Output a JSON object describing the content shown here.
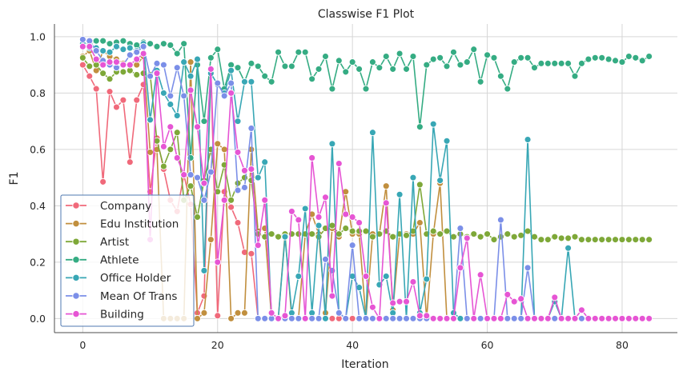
{
  "chart_data": {
    "type": "line",
    "title": "Classwise F1 Plot",
    "xlabel": "Iteration",
    "ylabel": "F1",
    "xlim": [
      -4.2,
      88.2
    ],
    "ylim": [
      -0.05,
      1.045
    ],
    "xticks": [
      0,
      20,
      40,
      60,
      80
    ],
    "yticks": [
      0.0,
      0.2,
      0.4,
      0.6,
      0.8,
      1.0
    ],
    "tick_labels_x": [
      "0",
      "20",
      "40",
      "60",
      "80"
    ],
    "tick_labels_y": [
      "0.0",
      "0.2",
      "0.4",
      "0.6",
      "0.8",
      "1.0"
    ],
    "grid": true,
    "legend_position": "lower-left",
    "x": [
      0,
      1,
      2,
      3,
      4,
      5,
      6,
      7,
      8,
      9,
      10,
      11,
      12,
      13,
      14,
      15,
      16,
      17,
      18,
      19,
      20,
      21,
      22,
      23,
      24,
      25,
      26,
      27,
      28,
      29,
      30,
      31,
      32,
      33,
      34,
      35,
      36,
      37,
      38,
      39,
      40,
      41,
      42,
      43,
      44,
      45,
      46,
      47,
      48,
      49,
      50,
      51,
      52,
      53,
      54,
      55,
      56,
      57,
      58,
      59,
      60,
      61,
      62,
      63,
      64,
      65,
      66,
      67,
      68,
      69,
      70,
      71,
      72,
      73,
      74,
      75,
      76,
      77,
      78,
      79,
      80,
      81,
      82,
      83,
      84
    ],
    "series": [
      {
        "name": "Company",
        "color": "#f0697a",
        "values": [
          0.9,
          0.86,
          0.815,
          0.485,
          0.805,
          0.75,
          0.775,
          0.555,
          0.775,
          0.83,
          0.45,
          0.64,
          0.53,
          0.42,
          0.38,
          0.51,
          0.405,
          0.02,
          0.08,
          0.88,
          0.01,
          0.45,
          0.395,
          0.34,
          0.235,
          0.23,
          0,
          0,
          0,
          0,
          0,
          0,
          0,
          0,
          0,
          0,
          0,
          0,
          0,
          0,
          0,
          0,
          0,
          0,
          0,
          0,
          0,
          0,
          0,
          0,
          0,
          0,
          0,
          0,
          0,
          0,
          0,
          0,
          0,
          0,
          0,
          0,
          0,
          0,
          0,
          0,
          0,
          0,
          0,
          0,
          0,
          0,
          0,
          0,
          0,
          0,
          0,
          0,
          0,
          0,
          0,
          0,
          0,
          0,
          0
        ]
      },
      {
        "name": "Edu Institution",
        "color": "#c18f3e",
        "values": [
          0.93,
          0.95,
          0.88,
          0.95,
          0.93,
          0.92,
          0.905,
          0.9,
          0.9,
          0.93,
          0.59,
          0.6,
          0,
          0,
          0,
          0,
          0.91,
          0,
          0.02,
          0.28,
          0.62,
          0.6,
          0,
          0.02,
          0.02,
          0.6,
          0.31,
          0.32,
          0,
          0,
          0.3,
          0,
          0,
          0.3,
          0.37,
          0.3,
          0.02,
          0.32,
          0.29,
          0.45,
          0.3,
          0.3,
          0,
          0.3,
          0.3,
          0.47,
          0.03,
          0.3,
          0.3,
          0.3,
          0.34,
          0,
          0.3,
          0.48,
          0,
          0,
          0,
          0,
          0,
          0,
          0,
          0,
          0,
          0,
          0,
          0,
          0,
          0,
          0,
          0,
          0,
          0,
          0,
          0,
          0,
          0,
          0,
          0,
          0,
          0,
          0,
          0,
          0,
          0,
          0
        ]
      },
      {
        "name": "Artist",
        "color": "#7ea838",
        "values": [
          0.925,
          0.895,
          0.9,
          0.87,
          0.85,
          0.875,
          0.875,
          0.88,
          0.865,
          0.87,
          0.865,
          0.63,
          0.54,
          0.6,
          0.66,
          0.42,
          0.47,
          0.36,
          0.49,
          0.6,
          0.45,
          0.545,
          0.42,
          0.48,
          0.5,
          0.49,
          0.3,
          0.29,
          0.3,
          0.29,
          0.3,
          0.3,
          0.3,
          0.3,
          0.3,
          0.29,
          0.32,
          0.33,
          0.3,
          0.32,
          0.31,
          0.31,
          0.31,
          0.29,
          0.3,
          0.31,
          0.29,
          0.3,
          0.295,
          0.31,
          0.475,
          0.3,
          0.31,
          0.3,
          0.31,
          0.29,
          0.3,
          0.29,
          0.3,
          0.29,
          0.3,
          0.28,
          0.29,
          0.3,
          0.29,
          0.295,
          0.31,
          0.29,
          0.28,
          0.28,
          0.29,
          0.285,
          0.285,
          0.29,
          0.28,
          0.28,
          0.28,
          0.28,
          0.28,
          0.28,
          0.28,
          0.28,
          0.28,
          0.28,
          0.28
        ]
      },
      {
        "name": "Athlete",
        "color": "#35ac83",
        "values": [
          0.985,
          0.975,
          0.985,
          0.985,
          0.975,
          0.98,
          0.985,
          0.975,
          0.97,
          0.98,
          0.975,
          0.965,
          0.975,
          0.97,
          0.94,
          0.975,
          0.57,
          0.9,
          0.7,
          0.925,
          0.955,
          0.815,
          0.9,
          0.89,
          0.84,
          0.905,
          0.895,
          0.86,
          0.84,
          0.945,
          0.895,
          0.895,
          0.945,
          0.945,
          0.85,
          0.885,
          0.93,
          0.815,
          0.915,
          0.875,
          0.91,
          0.885,
          0.815,
          0.91,
          0.89,
          0.93,
          0.885,
          0.94,
          0.885,
          0.93,
          0.68,
          0.9,
          0.92,
          0.925,
          0.895,
          0.945,
          0.9,
          0.91,
          0.955,
          0.84,
          0.935,
          0.925,
          0.86,
          0.815,
          0.91,
          0.925,
          0.925,
          0.89,
          0.905,
          0.905,
          0.905,
          0.905,
          0.905,
          0.86,
          0.905,
          0.92,
          0.925,
          0.925,
          0.92,
          0.915,
          0.91,
          0.93,
          0.925,
          0.915,
          0.93
        ]
      },
      {
        "name": "Office Holder",
        "color": "#38a7b5",
        "values": [
          0.975,
          0.96,
          0.96,
          0.95,
          0.945,
          0.965,
          0.955,
          0.96,
          0.95,
          0.975,
          0.705,
          0.88,
          0.8,
          0.76,
          0.72,
          0.91,
          0.86,
          0.92,
          0.17,
          0.87,
          0.83,
          0.8,
          0.88,
          0.7,
          0.84,
          0.84,
          0.5,
          0.555,
          0,
          0,
          0.29,
          0.02,
          0.15,
          0.39,
          0.02,
          0.33,
          0,
          0.62,
          0.02,
          0,
          0.15,
          0.11,
          0,
          0.66,
          0.12,
          0.15,
          0.02,
          0.44,
          0,
          0.5,
          0.02,
          0.14,
          0.69,
          0.49,
          0.63,
          0.02,
          0,
          0,
          0,
          0,
          0,
          0,
          0,
          0,
          0,
          0,
          0.635,
          0,
          0,
          0,
          0.06,
          0,
          0.25,
          0,
          0,
          0,
          0,
          0,
          0,
          0,
          0,
          0,
          0,
          0,
          0
        ]
      },
      {
        "name": "Mean Of Trans",
        "color": "#7b8fe8",
        "values": [
          0.99,
          0.985,
          0.95,
          0.915,
          0.9,
          0.89,
          0.9,
          0.935,
          0.945,
          0.965,
          0.86,
          0.905,
          0.9,
          0.79,
          0.89,
          0.79,
          0.51,
          0.5,
          0.42,
          0.52,
          0.835,
          0.79,
          0.835,
          0.455,
          0.465,
          0.675,
          0,
          0,
          0,
          0,
          0,
          0,
          0,
          0,
          0,
          0,
          0.21,
          0.17,
          0.02,
          0,
          0.26,
          0,
          0,
          0,
          0,
          0,
          0,
          0,
          0,
          0,
          0,
          0,
          0,
          0,
          0,
          0,
          0.32,
          0,
          0,
          0,
          0,
          0,
          0.35,
          0,
          0,
          0,
          0.18,
          0,
          0,
          0,
          0,
          0,
          0,
          0,
          0,
          0,
          0,
          0,
          0,
          0,
          0,
          0,
          0,
          0,
          0
        ]
      },
      {
        "name": "Building",
        "color": "#e655d4",
        "values": [
          0.965,
          0.965,
          0.92,
          0.9,
          0.91,
          0.91,
          0.9,
          0.9,
          0.92,
          0.94,
          0.28,
          0.87,
          0.61,
          0.68,
          0.57,
          0.51,
          0.81,
          0.68,
          0.48,
          0.885,
          0.2,
          0.42,
          0.8,
          0.59,
          0.525,
          0.53,
          0.26,
          0.42,
          0.02,
          0,
          0.01,
          0.38,
          0.35,
          0,
          0.57,
          0.36,
          0.43,
          0.08,
          0.55,
          0.37,
          0.36,
          0.34,
          0.15,
          0.04,
          0,
          0.41,
          0.055,
          0.06,
          0.06,
          0.13,
          0.01,
          0.01,
          0,
          0,
          0,
          0,
          0.18,
          0.285,
          0,
          0.155,
          0,
          0,
          0,
          0.085,
          0.06,
          0.07,
          0,
          0,
          0,
          0,
          0.075,
          0,
          0,
          0,
          0.03,
          0,
          0,
          0,
          0,
          0,
          0,
          0,
          0,
          0,
          0
        ]
      }
    ]
  }
}
